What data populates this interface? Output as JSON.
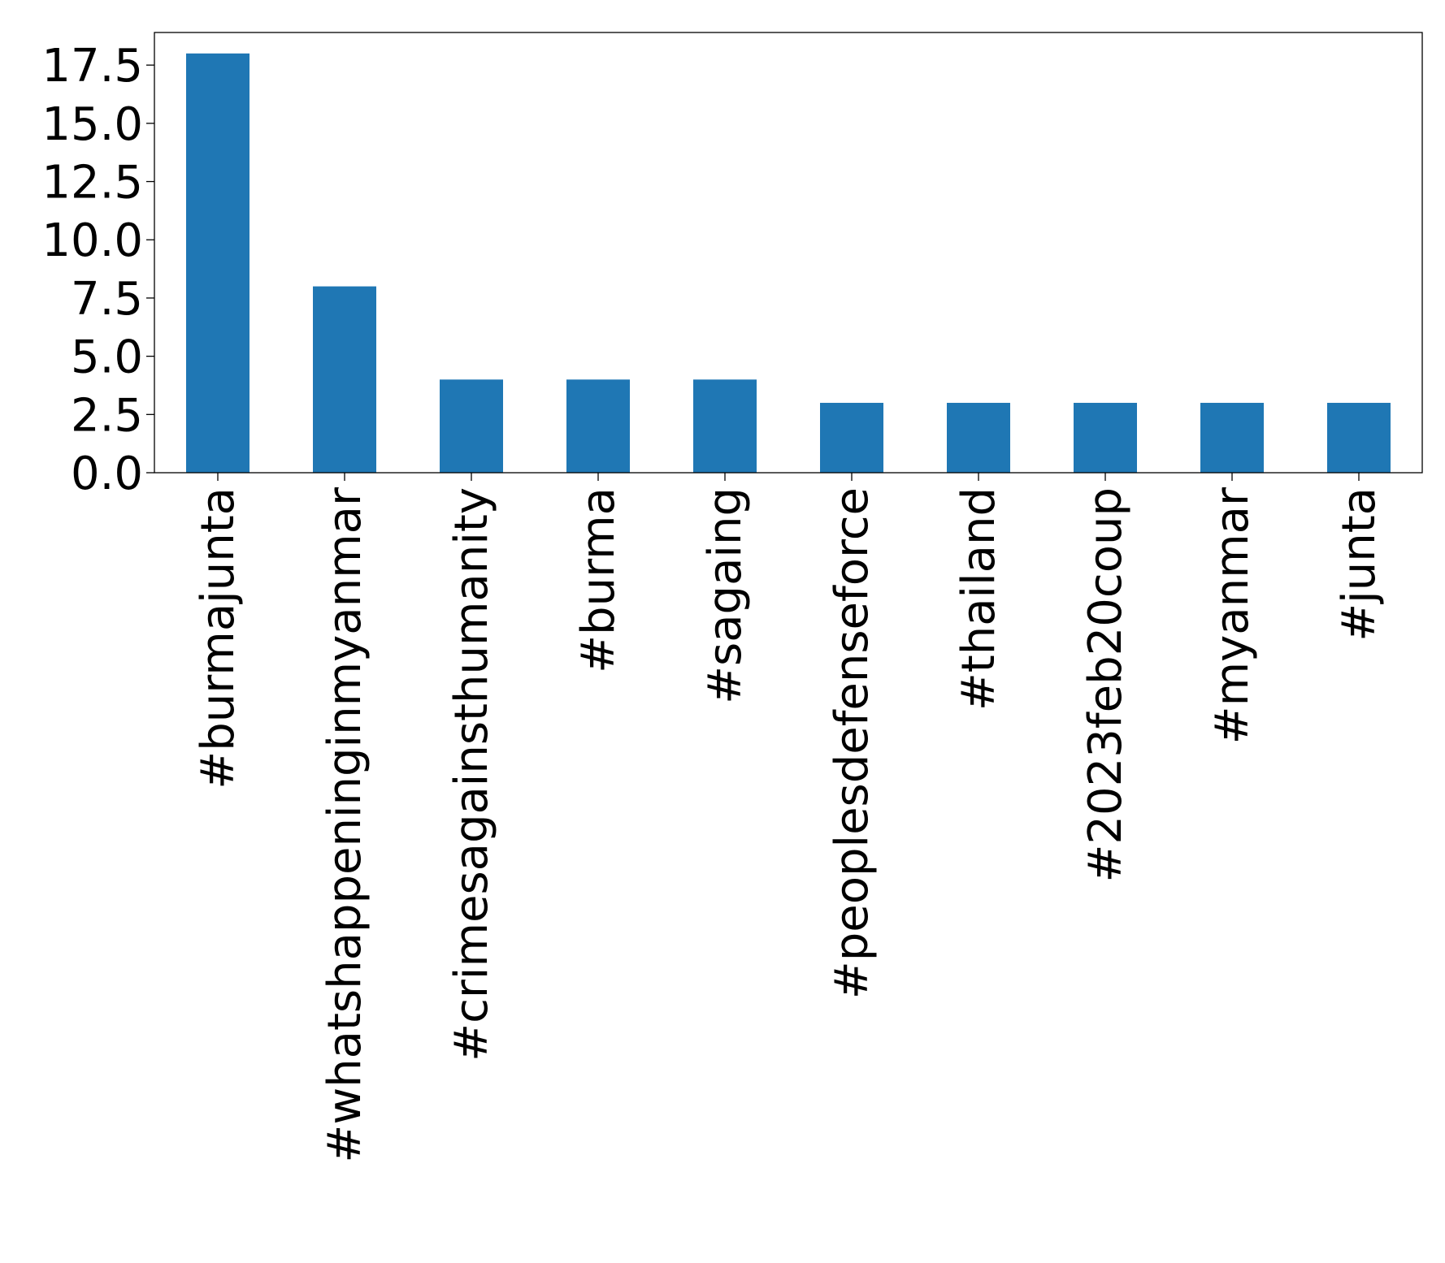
{
  "chart_data": {
    "type": "bar",
    "title": "",
    "xlabel": "",
    "ylabel": "",
    "categories": [
      "#burmajunta",
      "#whatshappeninginmyanmar",
      "#crimesagainsthumanity",
      "#burma",
      "#sagaing",
      "#peoplesdefenseforce",
      "#thailand",
      "#2023feb20coup",
      "#myanmar",
      "#junta"
    ],
    "values": [
      18,
      8,
      4,
      4,
      4,
      3,
      3,
      3,
      3,
      3
    ],
    "ylim": [
      0,
      18.9
    ],
    "yticks": [
      0.0,
      2.5,
      5.0,
      7.5,
      10.0,
      12.5,
      15.0,
      17.5
    ],
    "ytick_labels": [
      "0.0",
      "2.5",
      "5.0",
      "7.5",
      "10.0",
      "12.5",
      "15.0",
      "17.5"
    ],
    "grid": false,
    "legend": null,
    "colors": {
      "bar": "#1f77b4",
      "axis": "#000000"
    }
  }
}
